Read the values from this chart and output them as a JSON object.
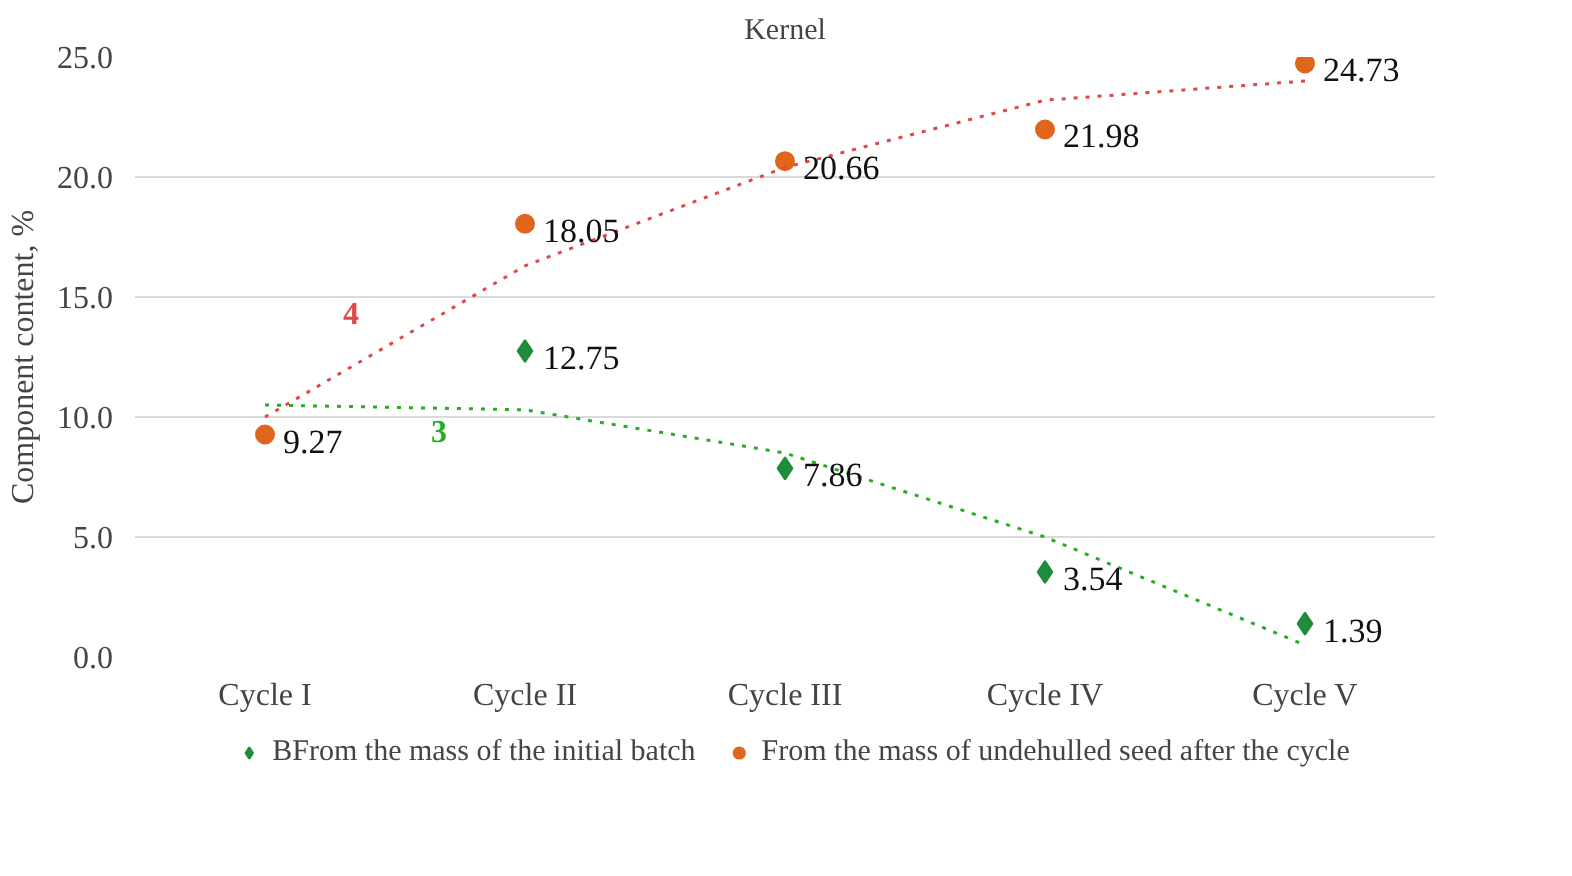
{
  "chart_data": {
    "type": "scatter",
    "title": "Kernel",
    "ylabel": "Component content, %",
    "categories": [
      "Cycle I",
      "Cycle II",
      "Cycle III",
      "Cycle IV",
      "Cycle V"
    ],
    "ylim": [
      0,
      25
    ],
    "yticks": [
      {
        "value": 0,
        "label": "0.0"
      },
      {
        "value": 5,
        "label": "5.0"
      },
      {
        "value": 10,
        "label": "10.0"
      },
      {
        "value": 15,
        "label": "15.0"
      },
      {
        "value": 20,
        "label": "20.0"
      },
      {
        "value": 25,
        "label": "25.0"
      }
    ],
    "grid": "y",
    "legend": "bottom",
    "series": [
      {
        "name": "BFrom the mass of the initial batch",
        "color": "#1e8c3a",
        "marker": "diamond",
        "values": [
          null,
          12.75,
          7.86,
          3.54,
          1.39
        ],
        "value_labels": [
          null,
          "12.75",
          "7.86",
          "3.54",
          "1.39"
        ]
      },
      {
        "name": "From the mass of undehulled seed after the cycle",
        "color": "#e0661c",
        "marker": "circle",
        "values": [
          9.27,
          18.05,
          20.66,
          21.98,
          24.73
        ],
        "value_labels": [
          "9.27",
          "18.05",
          "20.66",
          "21.98",
          "24.73"
        ]
      },
      {
        "type": "line",
        "color": "#e04848",
        "line_style": "dotted",
        "x": [
          "Cycle I",
          "Cycle II",
          "Cycle III",
          "Cycle IV",
          "Cycle V"
        ],
        "values": [
          10.0,
          16.3,
          20.4,
          23.2,
          24.0
        ]
      },
      {
        "type": "line",
        "color": "#22b022",
        "line_style": "dotted",
        "x": [
          "Cycle I",
          "Cycle II",
          "Cycle III",
          "Cycle IV",
          "Cycle V"
        ],
        "values": [
          10.5,
          10.3,
          8.5,
          5.0,
          0.5
        ]
      }
    ],
    "annotations": [
      "4",
      "3"
    ]
  }
}
